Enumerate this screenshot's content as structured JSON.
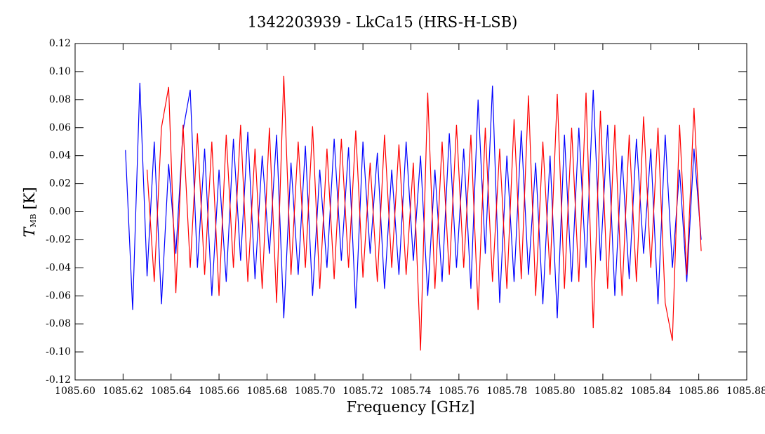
{
  "chart_data": {
    "type": "line",
    "title": "1342203939 - LkCa15 (HRS-H-LSB)",
    "x_label": "Frequency [GHz]",
    "y_label": [
      "T",
      "MB",
      "[K]"
    ],
    "xlim": [
      1085.6,
      1085.88
    ],
    "ylim": [
      -0.12,
      0.12
    ],
    "xticks": [
      {
        "value": 1085.6,
        "label": "1085.60"
      },
      {
        "value": 1085.62,
        "label": "1085.62"
      },
      {
        "value": 1085.64,
        "label": "1085.64"
      },
      {
        "value": 1085.66,
        "label": "1085.66"
      },
      {
        "value": 1085.68,
        "label": "1085.68"
      },
      {
        "value": 1085.7,
        "label": "1085.70"
      },
      {
        "value": 1085.72,
        "label": "1085.72"
      },
      {
        "value": 1085.74,
        "label": "1085.74"
      },
      {
        "value": 1085.76,
        "label": "1085.76"
      },
      {
        "value": 1085.78,
        "label": "1085.78"
      },
      {
        "value": 1085.8,
        "label": "1085.80"
      },
      {
        "value": 1085.82,
        "label": "1085.82"
      },
      {
        "value": 1085.84,
        "label": "1085.84"
      },
      {
        "value": 1085.86,
        "label": "1085.86"
      },
      {
        "value": 1085.88,
        "label": "1085.88"
      }
    ],
    "yticks": [
      {
        "value": -0.12,
        "label": "-0.12"
      },
      {
        "value": -0.1,
        "label": "-0.10"
      },
      {
        "value": -0.08,
        "label": "-0.08"
      },
      {
        "value": -0.06,
        "label": "-0.06"
      },
      {
        "value": -0.04,
        "label": "-0.04"
      },
      {
        "value": -0.02,
        "label": "-0.02"
      },
      {
        "value": 0,
        "label": "0.00"
      },
      {
        "value": 0.02,
        "label": "0.02"
      },
      {
        "value": 0.04,
        "label": "0.04"
      },
      {
        "value": 0.06,
        "label": "0.06"
      },
      {
        "value": 0.08,
        "label": "0.08"
      },
      {
        "value": 0.1,
        "label": "0.10"
      },
      {
        "value": 0.12,
        "label": "0.12"
      }
    ],
    "x": [
      1085.621,
      1085.624,
      1085.627,
      1085.63,
      1085.633,
      1085.636,
      1085.639,
      1085.642,
      1085.645,
      1085.648,
      1085.651,
      1085.654,
      1085.657,
      1085.66,
      1085.663,
      1085.666,
      1085.669,
      1085.672,
      1085.675,
      1085.678,
      1085.681,
      1085.684,
      1085.687,
      1085.69,
      1085.693,
      1085.696,
      1085.699,
      1085.702,
      1085.705,
      1085.708,
      1085.711,
      1085.714,
      1085.717,
      1085.72,
      1085.723,
      1085.726,
      1085.729,
      1085.732,
      1085.735,
      1085.738,
      1085.741,
      1085.744,
      1085.747,
      1085.75,
      1085.753,
      1085.756,
      1085.759,
      1085.762,
      1085.765,
      1085.768,
      1085.771,
      1085.774,
      1085.777,
      1085.78,
      1085.783,
      1085.786,
      1085.789,
      1085.792,
      1085.795,
      1085.798,
      1085.801,
      1085.804,
      1085.807,
      1085.81,
      1085.813,
      1085.816,
      1085.819,
      1085.822,
      1085.825,
      1085.828,
      1085.831,
      1085.834,
      1085.837,
      1085.84,
      1085.843,
      1085.846,
      1085.849,
      1085.852,
      1085.855,
      1085.858,
      1085.861
    ],
    "series": [
      {
        "color": "#0000ff",
        "values": [
          0.044,
          -0.07,
          0.092,
          -0.046,
          0.05,
          -0.066,
          0.034,
          -0.03,
          0.058,
          0.087,
          -0.04,
          0.045,
          -0.06,
          0.03,
          -0.05,
          0.052,
          -0.035,
          0.057,
          -0.048,
          0.04,
          -0.03,
          0.055,
          -0.076,
          0.035,
          -0.045,
          0.047,
          -0.06,
          0.03,
          -0.04,
          0.052,
          -0.035,
          0.046,
          -0.069,
          0.05,
          -0.03,
          0.042,
          -0.055,
          0.03,
          -0.045,
          0.05,
          -0.035,
          0.04,
          -0.06,
          0.03,
          -0.05,
          0.056,
          -0.04,
          0.045,
          -0.055,
          0.08,
          -0.03,
          0.09,
          -0.065,
          0.04,
          -0.05,
          0.058,
          -0.045,
          0.035,
          -0.066,
          0.04,
          -0.076,
          0.055,
          -0.05,
          0.06,
          -0.04,
          0.087,
          -0.035,
          0.062,
          -0.06,
          0.04,
          -0.048,
          0.052,
          -0.03,
          0.045,
          -0.066,
          0.055,
          -0.04,
          0.03,
          -0.05,
          0.045,
          -0.02
        ]
      },
      {
        "color": "#ff0000",
        "values": [
          null,
          null,
          null,
          0.03,
          -0.05,
          0.06,
          0.089,
          -0.058,
          0.062,
          -0.04,
          0.056,
          -0.045,
          0.05,
          -0.06,
          0.055,
          -0.04,
          0.062,
          -0.05,
          0.045,
          -0.055,
          0.06,
          -0.065,
          0.097,
          -0.045,
          0.05,
          -0.04,
          0.061,
          -0.055,
          0.045,
          -0.048,
          0.052,
          -0.04,
          0.058,
          -0.047,
          0.035,
          -0.05,
          0.055,
          -0.04,
          0.048,
          -0.045,
          0.035,
          -0.099,
          0.085,
          -0.055,
          0.05,
          -0.045,
          0.062,
          -0.04,
          0.055,
          -0.07,
          0.06,
          -0.05,
          0.045,
          -0.055,
          0.066,
          -0.048,
          0.083,
          -0.06,
          0.05,
          -0.045,
          0.084,
          -0.055,
          0.06,
          -0.05,
          0.085,
          -0.083,
          0.072,
          -0.055,
          0.062,
          -0.06,
          0.055,
          -0.05,
          0.068,
          -0.04,
          0.06,
          -0.065,
          -0.092,
          0.062,
          -0.045,
          0.074,
          -0.028
        ]
      }
    ]
  }
}
